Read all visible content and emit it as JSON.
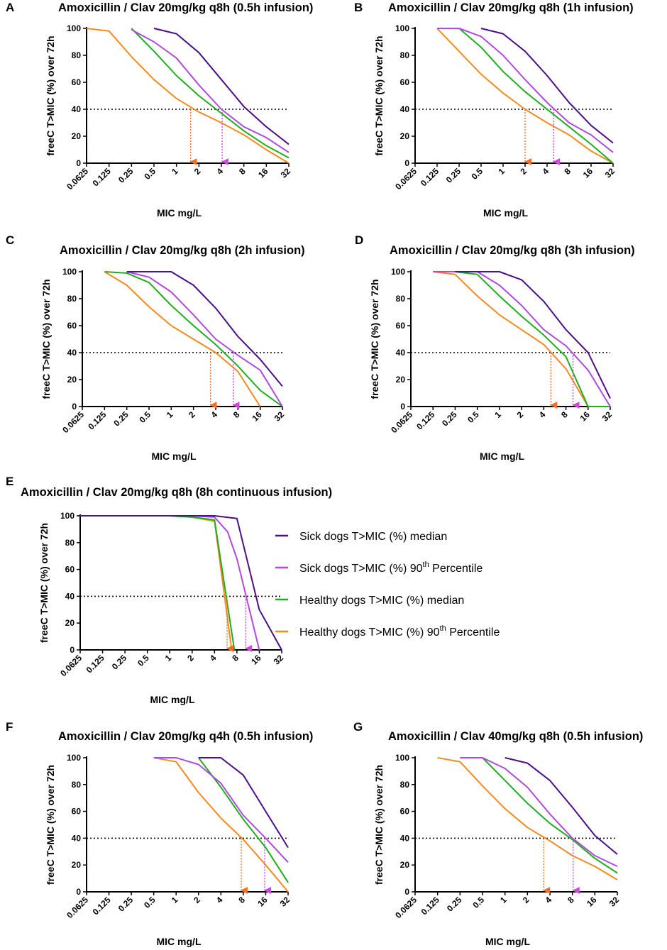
{
  "colors": {
    "sick_median": "#4b0f86",
    "sick_p90": "#b04adf",
    "healthy_median": "#1fae1f",
    "healthy_p90": "#f58a1f",
    "arrow_orange": "#f26f2a",
    "arrow_magenta": "#d146de",
    "axis": "#000000"
  },
  "legend": {
    "items": [
      {
        "key": "sick_median",
        "prefix": "Sick dogs T>MIC (%) median",
        "sup": "",
        "suffix": ""
      },
      {
        "key": "sick_p90",
        "prefix": "Sick dogs T>MIC (%) 90",
        "sup": "th",
        "suffix": " Percentile"
      },
      {
        "key": "healthy_median",
        "prefix": "Healthy dogs T>MIC (%) median",
        "sup": "",
        "suffix": ""
      },
      {
        "key": "healthy_p90",
        "prefix": "Healthy dogs T>MIC (%) 90",
        "sup": "th",
        "suffix": " Percentile"
      }
    ]
  },
  "chart_data": [
    {
      "panel": "A",
      "type": "line",
      "title": "Amoxicillin / Clav 20mg/kg q8h  (0.5h infusion)",
      "xlabel": "MIC mg/L",
      "ylabel": "freeC T>MIC (%) over 72h",
      "x_scale": "log2",
      "categories": [
        "0.0625",
        "0.125",
        "0.25",
        "0.5",
        "1",
        "2",
        "4",
        "8",
        "16",
        "32"
      ],
      "yticks": [
        0,
        20,
        40,
        60,
        80,
        100
      ],
      "ylim": [
        0,
        100
      ],
      "threshold": 40,
      "series": [
        {
          "name": "Sick dogs T>MIC (%) median",
          "key": "sick_median",
          "x": [
            0.5,
            1,
            2,
            4,
            8,
            16,
            32
          ],
          "y": [
            100,
            96,
            82,
            62,
            42,
            27,
            14
          ]
        },
        {
          "name": "Sick dogs T>MIC (%) 90th Percentile",
          "key": "sick_p90",
          "x": [
            0.25,
            0.5,
            1,
            2,
            4,
            8,
            16,
            32
          ],
          "y": [
            99,
            90,
            78,
            58,
            40,
            27,
            19,
            8
          ]
        },
        {
          "name": "Healthy dogs T>MIC (%) median",
          "key": "healthy_median",
          "x": [
            0.25,
            0.5,
            1,
            2,
            4,
            8,
            16,
            32
          ],
          "y": [
            100,
            83,
            65,
            50,
            37,
            24,
            13,
            4
          ]
        },
        {
          "name": "Healthy dogs T>MIC (%) 90th Percentile",
          "key": "healthy_p90",
          "x": [
            0.0625,
            0.125,
            0.25,
            0.5,
            1,
            2,
            4,
            8,
            16,
            32
          ],
          "y": [
            100,
            98,
            79,
            62,
            48,
            38,
            30,
            21,
            10,
            0
          ]
        }
      ],
      "arrows": [
        {
          "key": "arrow_orange",
          "x": 1.55
        },
        {
          "key": "arrow_magenta",
          "x": 4.1
        }
      ]
    },
    {
      "panel": "B",
      "type": "line",
      "title": "Amoxicillin / Clav 20mg/kg q8h  (1h infusion)",
      "xlabel": "MIC mg/L",
      "ylabel": "freeC T>MIC (%) over 72h",
      "x_scale": "log2",
      "categories": [
        "0.0625",
        "0.125",
        "0.25",
        "0.5",
        "1",
        "2",
        "4",
        "8",
        "16",
        "32"
      ],
      "yticks": [
        0,
        20,
        40,
        60,
        80,
        100
      ],
      "ylim": [
        0,
        100
      ],
      "threshold": 40,
      "series": [
        {
          "name": "Sick dogs T>MIC (%) median",
          "key": "sick_median",
          "x": [
            0.5,
            1,
            2,
            4,
            8,
            16,
            32
          ],
          "y": [
            100,
            96,
            83,
            65,
            45,
            28,
            15
          ]
        },
        {
          "name": "Sick dogs T>MIC (%) 90th Percentile",
          "key": "sick_p90",
          "x": [
            0.125,
            0.25,
            0.5,
            1,
            2,
            4,
            8,
            16,
            32
          ],
          "y": [
            100,
            100,
            94,
            80,
            62,
            45,
            30,
            21,
            8
          ]
        },
        {
          "name": "Healthy dogs T>MIC (%) median",
          "key": "healthy_median",
          "x": [
            0.125,
            0.25,
            0.5,
            1,
            2,
            4,
            8,
            16,
            32
          ],
          "y": [
            100,
            100,
            86,
            68,
            53,
            40,
            27,
            14,
            0
          ]
        },
        {
          "name": "Healthy dogs T>MIC (%) 90th Percentile",
          "key": "healthy_p90",
          "x": [
            0.125,
            0.25,
            0.5,
            1,
            2,
            4,
            8,
            16,
            32
          ],
          "y": [
            100,
            83,
            66,
            52,
            40,
            30,
            21,
            9,
            0
          ]
        }
      ],
      "arrows": [
        {
          "key": "arrow_orange",
          "x": 2.0
        },
        {
          "key": "arrow_magenta",
          "x": 4.9
        }
      ]
    },
    {
      "panel": "C",
      "type": "line",
      "title": "Amoxicillin / Clav 20mg/kg q8h (2h infusion)",
      "xlabel": "MIC mg/L",
      "ylabel": "freeC T>MIC (%) over 72h",
      "x_scale": "log2",
      "categories": [
        "0.0625",
        "0.125",
        "0.25",
        "0.5",
        "1",
        "2",
        "4",
        "8",
        "16",
        "32"
      ],
      "yticks": [
        0,
        20,
        40,
        60,
        80,
        100
      ],
      "ylim": [
        0,
        100
      ],
      "threshold": 40,
      "series": [
        {
          "name": "Sick dogs T>MIC (%) median",
          "key": "sick_median",
          "x": [
            0.25,
            0.5,
            1,
            2,
            4,
            8,
            16,
            32
          ],
          "y": [
            100,
            100,
            100,
            90,
            73,
            52,
            35,
            15
          ]
        },
        {
          "name": "Sick dogs T>MIC (%) 90th Percentile",
          "key": "sick_p90",
          "x": [
            0.25,
            0.5,
            1,
            2,
            4,
            8,
            16,
            32
          ],
          "y": [
            100,
            96,
            85,
            68,
            50,
            38,
            27,
            0
          ]
        },
        {
          "name": "Healthy dogs T>MIC (%) median",
          "key": "healthy_median",
          "x": [
            0.125,
            0.25,
            0.5,
            1,
            2,
            4,
            8,
            16,
            32
          ],
          "y": [
            100,
            99,
            92,
            75,
            60,
            46,
            30,
            12,
            0
          ]
        },
        {
          "name": "Healthy dogs T>MIC (%) 90th Percentile",
          "key": "healthy_p90",
          "x": [
            0.125,
            0.25,
            0.5,
            1,
            2,
            4,
            8,
            16
          ],
          "y": [
            100,
            90,
            74,
            60,
            50,
            40,
            26,
            0
          ]
        }
      ],
      "arrows": [
        {
          "key": "arrow_orange",
          "x": 3.4
        },
        {
          "key": "arrow_magenta",
          "x": 6.9
        }
      ]
    },
    {
      "panel": "D",
      "type": "line",
      "title": "Amoxicillin / Clav 20mg/kg q8h (3h infusion)",
      "xlabel": "MIC mg/L",
      "ylabel": "freeC T>MIC (%) over 72h",
      "x_scale": "log2",
      "categories": [
        "0.0625",
        "0.125",
        "0.25",
        "0.5",
        "1",
        "2",
        "4",
        "8",
        "16",
        "32"
      ],
      "yticks": [
        0,
        20,
        40,
        60,
        80,
        100
      ],
      "ylim": [
        0,
        100
      ],
      "threshold": 40,
      "series": [
        {
          "name": "Sick dogs T>MIC (%) median",
          "key": "sick_median",
          "x": [
            0.25,
            0.5,
            1,
            2,
            4,
            8,
            16,
            32
          ],
          "y": [
            100,
            100,
            100,
            94,
            78,
            57,
            40,
            6
          ]
        },
        {
          "name": "Sick dogs T>MIC (%) 90th Percentile",
          "key": "sick_p90",
          "x": [
            0.125,
            0.25,
            0.5,
            1,
            2,
            4,
            8,
            16,
            32
          ],
          "y": [
            100,
            100,
            100,
            90,
            75,
            57,
            45,
            27,
            0
          ]
        },
        {
          "name": "Healthy dogs T>MIC (%) median",
          "key": "healthy_median",
          "x": [
            0.125,
            0.25,
            0.5,
            1,
            2,
            4,
            8,
            16,
            32
          ],
          "y": [
            100,
            100,
            98,
            82,
            67,
            53,
            37,
            0,
            0
          ]
        },
        {
          "name": "Healthy dogs T>MIC (%) 90th Percentile",
          "key": "healthy_p90",
          "x": [
            0.125,
            0.25,
            0.5,
            1,
            2,
            4,
            8,
            16
          ],
          "y": [
            100,
            98,
            82,
            68,
            57,
            46,
            28,
            0
          ]
        }
      ],
      "arrows": [
        {
          "key": "arrow_orange",
          "x": 5.0
        },
        {
          "key": "arrow_magenta",
          "x": 10.0
        }
      ]
    },
    {
      "panel": "E",
      "type": "line",
      "title": "Amoxicillin / Clav 20mg/kg q8h (8h continuous infusion)",
      "xlabel": "MIC mg/L",
      "ylabel": "freeC T>MIC (%) over 72h",
      "x_scale": "log2",
      "categories": [
        "0.0625",
        "0.125",
        "0.25",
        "0.5",
        "1",
        "2",
        "4",
        "8",
        "16",
        "32"
      ],
      "yticks": [
        0,
        20,
        40,
        60,
        80,
        100
      ],
      "ylim": [
        0,
        100
      ],
      "threshold": 40,
      "series": [
        {
          "name": "Sick dogs T>MIC (%) median",
          "key": "sick_median",
          "x": [
            0.0625,
            1,
            2,
            4,
            8,
            16,
            32
          ],
          "y": [
            100,
            100,
            100,
            100,
            98,
            30,
            0
          ]
        },
        {
          "name": "Sick dogs T>MIC (%) 90th Percentile",
          "key": "sick_p90",
          "x": [
            0.0625,
            1,
            2,
            4,
            6,
            8,
            16
          ],
          "y": [
            100,
            100,
            100,
            99,
            88,
            68,
            0
          ]
        },
        {
          "name": "Healthy dogs T>MIC (%) median",
          "key": "healthy_median",
          "x": [
            0.0625,
            1,
            2,
            4,
            7.4
          ],
          "y": [
            100,
            100,
            99,
            97,
            0
          ]
        },
        {
          "name": "Healthy dogs T>MIC (%) 90th Percentile",
          "key": "healthy_p90",
          "x": [
            0.0625,
            1,
            2,
            4,
            6.8
          ],
          "y": [
            100,
            100,
            99,
            96,
            0
          ]
        }
      ],
      "arrows": [
        {
          "key": "arrow_orange",
          "x": 5.9
        },
        {
          "key": "arrow_magenta",
          "x": 10.5
        }
      ]
    },
    {
      "panel": "F",
      "type": "line",
      "title": "Amoxicillin / Clav 20mg/kg q4h (0.5h infusion)",
      "xlabel": "MIC mg/L",
      "ylabel": "freeC T>MIC (%) over 72h",
      "x_scale": "log2",
      "categories": [
        "0.0625",
        "0.125",
        "0.25",
        "0.5",
        "1",
        "2",
        "4",
        "8",
        "16",
        "32"
      ],
      "yticks": [
        0,
        20,
        40,
        60,
        80,
        100
      ],
      "ylim": [
        0,
        100
      ],
      "threshold": 40,
      "series": [
        {
          "name": "Sick dogs T>MIC (%) median",
          "key": "sick_median",
          "x": [
            2,
            4,
            8,
            16,
            32
          ],
          "y": [
            100,
            100,
            87,
            60,
            33
          ]
        },
        {
          "name": "Sick dogs T>MIC (%) 90th Percentile",
          "key": "sick_p90",
          "x": [
            0.5,
            1,
            2,
            4,
            8,
            16,
            32
          ],
          "y": [
            100,
            100,
            95,
            81,
            57,
            40,
            22
          ]
        },
        {
          "name": "Healthy dogs T>MIC (%) median",
          "key": "healthy_median",
          "x": [
            2,
            4,
            8,
            16,
            32
          ],
          "y": [
            100,
            78,
            54,
            33,
            7
          ]
        },
        {
          "name": "Healthy dogs T>MIC (%) 90th Percentile",
          "key": "healthy_p90",
          "x": [
            0.5,
            1,
            2,
            4,
            8,
            16,
            32
          ],
          "y": [
            100,
            97,
            74,
            55,
            39,
            20,
            0
          ]
        }
      ],
      "arrows": [
        {
          "key": "arrow_orange",
          "x": 7.5
        },
        {
          "key": "arrow_magenta",
          "x": 15.5
        }
      ]
    },
    {
      "panel": "G",
      "type": "line",
      "title": "Amoxicillin / Clav 40mg/kg q8h (0.5h infusion)",
      "xlabel": "MIC mg/L",
      "ylabel": "freeC T>MIC (%) over 72h",
      "x_scale": "log2",
      "categories": [
        "0.0625",
        "0.125",
        "0.25",
        "0.5",
        "1",
        "2",
        "4",
        "8",
        "16",
        "32"
      ],
      "yticks": [
        0,
        20,
        40,
        60,
        80,
        100
      ],
      "ylim": [
        0,
        100
      ],
      "threshold": 40,
      "series": [
        {
          "name": "Sick dogs T>MIC (%) median",
          "key": "sick_median",
          "x": [
            1,
            2,
            4,
            8,
            16,
            32
          ],
          "y": [
            100,
            96,
            83,
            63,
            42,
            28
          ]
        },
        {
          "name": "Sick dogs T>MIC (%) 90th Percentile",
          "key": "sick_p90",
          "x": [
            0.25,
            0.5,
            1,
            2,
            4,
            8,
            16,
            32
          ],
          "y": [
            100,
            100,
            92,
            78,
            58,
            40,
            27,
            19
          ]
        },
        {
          "name": "Healthy dogs T>MIC (%) median",
          "key": "healthy_median",
          "x": [
            0.5,
            1,
            2,
            4,
            8,
            16,
            32
          ],
          "y": [
            100,
            83,
            66,
            51,
            39,
            25,
            14
          ]
        },
        {
          "name": "Healthy dogs T>MIC (%) 90th Percentile",
          "key": "healthy_p90",
          "x": [
            0.125,
            0.25,
            0.5,
            1,
            2,
            4,
            8,
            16,
            32
          ],
          "y": [
            100,
            97,
            79,
            62,
            48,
            38,
            27,
            19,
            9
          ]
        }
      ],
      "arrows": [
        {
          "key": "arrow_orange",
          "x": 3.3
        },
        {
          "key": "arrow_magenta",
          "x": 8.2
        }
      ]
    }
  ]
}
